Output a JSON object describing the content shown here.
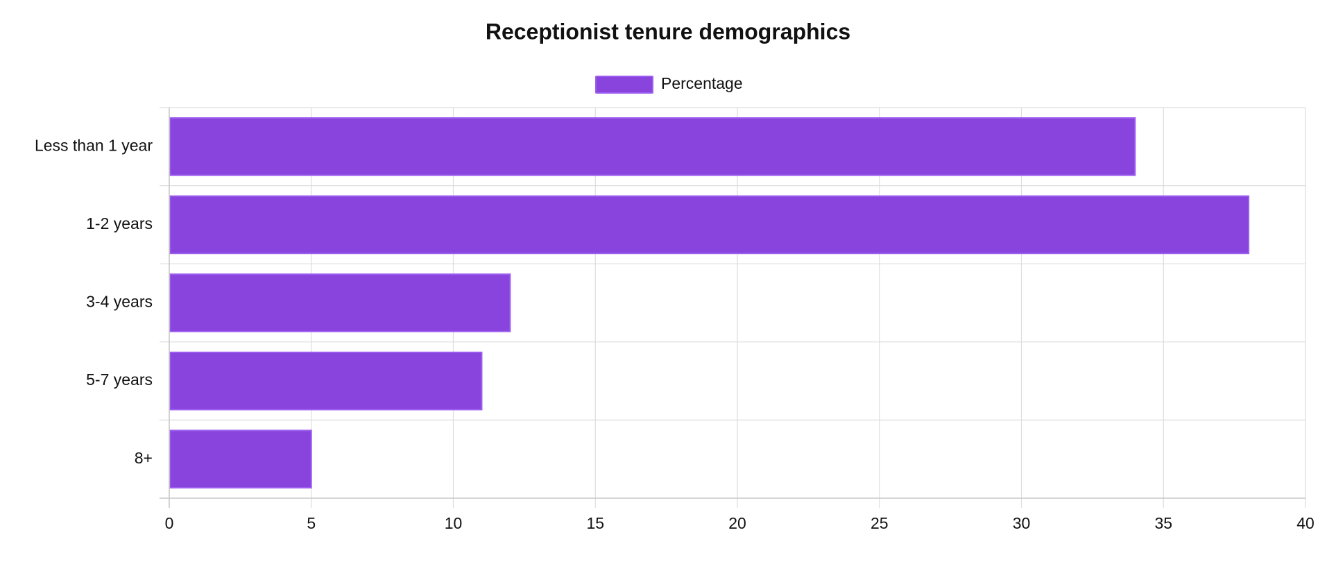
{
  "chart_data": {
    "type": "bar",
    "orientation": "horizontal",
    "title": "Receptionist tenure demographics",
    "categories": [
      "Less than 1 year",
      "1-2 years",
      "3-4 years",
      "5-7 years",
      "8+"
    ],
    "series": [
      {
        "name": "Percentage",
        "values": [
          34,
          38,
          12,
          11,
          5
        ],
        "color": "#8844dd",
        "border_color": "#9d5ef0"
      }
    ],
    "xlim": [
      0,
      40
    ],
    "x_ticks": [
      0,
      5,
      10,
      15,
      20,
      25,
      30,
      35,
      40
    ],
    "grid": true,
    "legend_position": "top-center",
    "xlabel": "",
    "ylabel": ""
  }
}
